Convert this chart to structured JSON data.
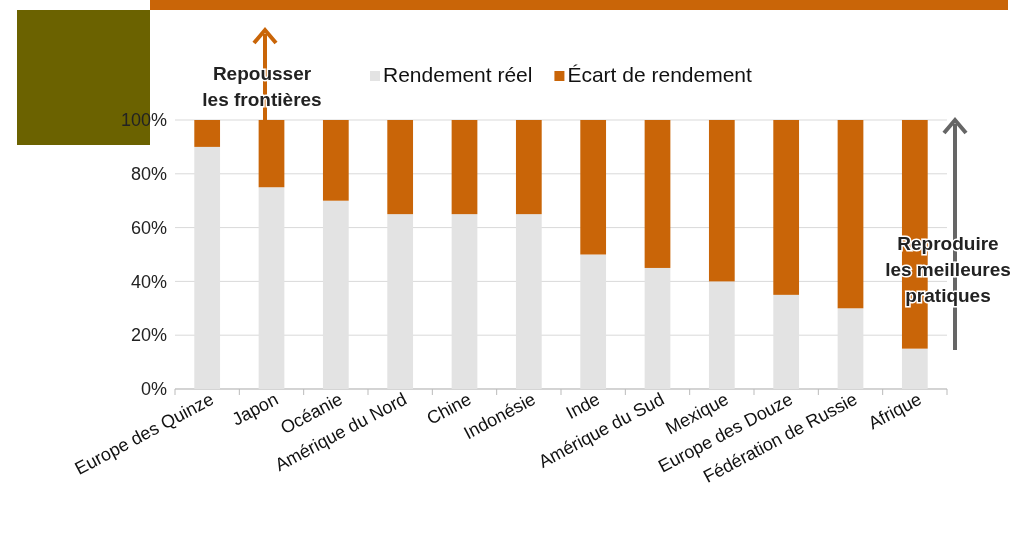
{
  "chart_data": {
    "type": "bar",
    "stacked": true,
    "categories": [
      "Europe des Quinze",
      "Japon",
      "Océanie",
      "Amérique du Nord",
      "Chine",
      "Indonésie",
      "Inde",
      "Amérique du Sud",
      "Mexique",
      "Europe des Douze",
      "Fédération de Russie",
      "Afrique"
    ],
    "series": [
      {
        "name": "Rendement réel",
        "color": "#e3e3e3",
        "values": [
          90,
          75,
          70,
          65,
          65,
          65,
          50,
          45,
          40,
          35,
          30,
          15
        ]
      },
      {
        "name": "Écart de rendement",
        "color": "#c96508",
        "values": [
          10,
          25,
          30,
          35,
          35,
          35,
          50,
          55,
          60,
          65,
          70,
          85
        ]
      }
    ],
    "ylim": [
      0,
      100
    ],
    "yticks": [
      {
        "value": 0,
        "label": "0%"
      },
      {
        "value": 20,
        "label": "20%"
      },
      {
        "value": 40,
        "label": "40%"
      },
      {
        "value": 60,
        "label": "60%"
      },
      {
        "value": 80,
        "label": "80%"
      },
      {
        "value": 100,
        "label": "100%"
      }
    ],
    "grid": "y",
    "legend": "top",
    "annotations": [
      "Repousser les frontières",
      "Reproduire les meilleures pratiques"
    ]
  }
}
